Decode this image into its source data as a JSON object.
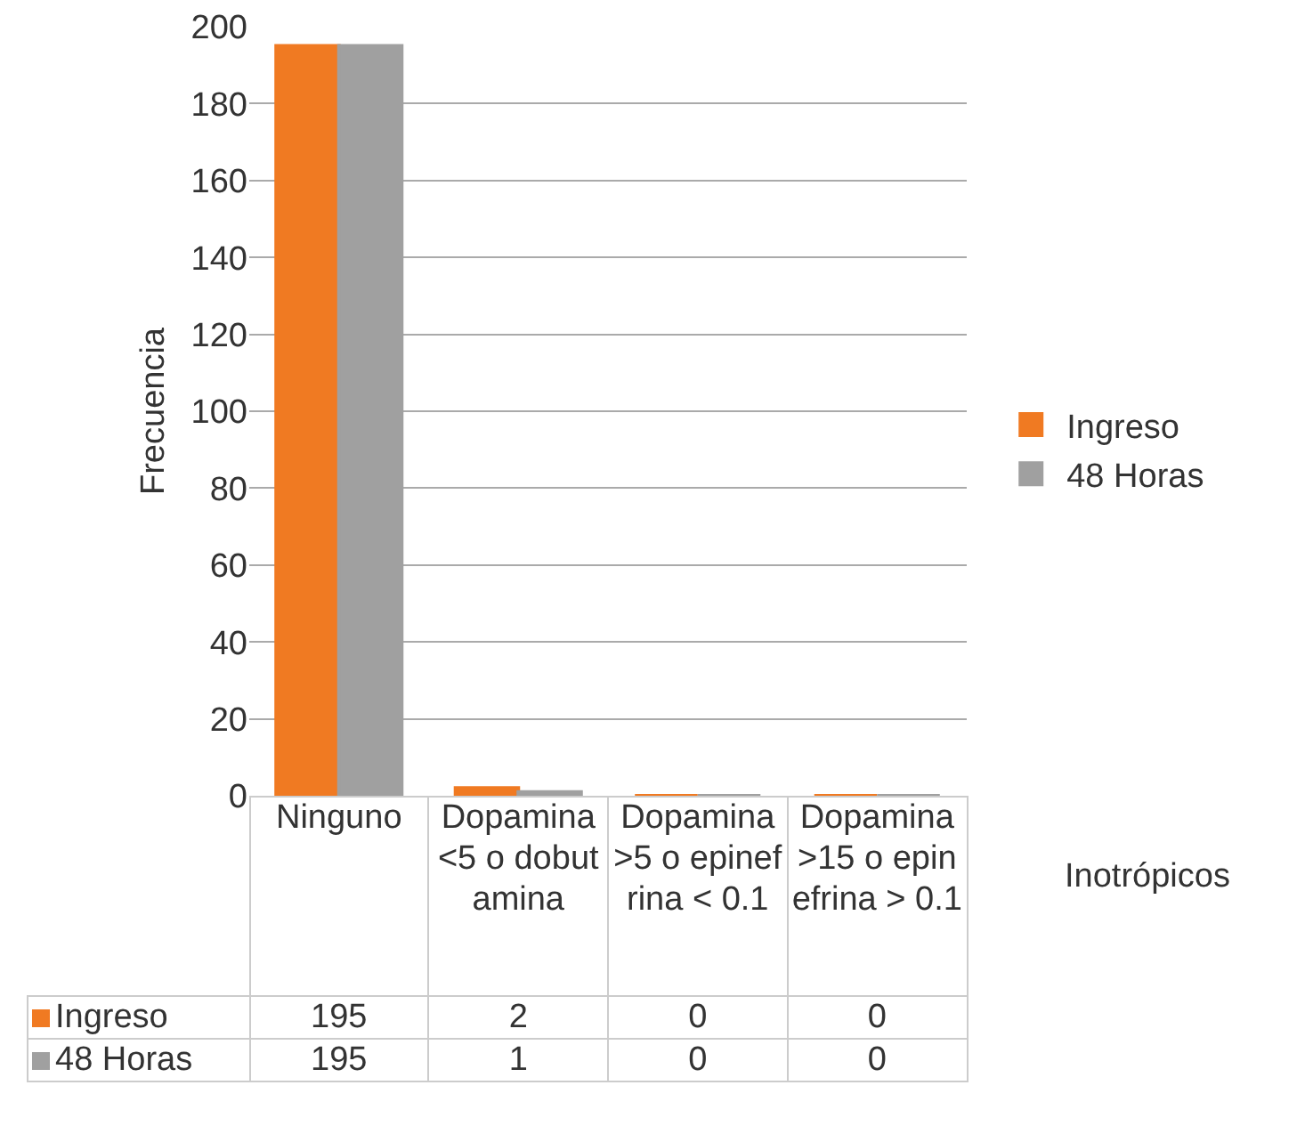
{
  "chart_data": {
    "type": "bar",
    "categories": [
      "Ninguno",
      "Dopamina <5 o dobutamina",
      "Dopamina >5 o epinefrina < 0.1",
      "Dopamina >15 o epinefrina > 0.1"
    ],
    "series": [
      {
        "name": "Ingreso",
        "color": "#f07a22",
        "values": [
          195,
          2,
          0,
          0
        ]
      },
      {
        "name": "48 Horas",
        "color": "#a0a0a0",
        "values": [
          195,
          1,
          0,
          0
        ]
      }
    ],
    "xlabel": "Inotrópicos",
    "ylabel": "Frecuencia",
    "ylim": [
      0,
      200
    ],
    "yticks": [
      0,
      20,
      40,
      60,
      80,
      100,
      120,
      140,
      160,
      180,
      200
    ],
    "grid": "y",
    "legend": "right",
    "data_labels": true
  }
}
